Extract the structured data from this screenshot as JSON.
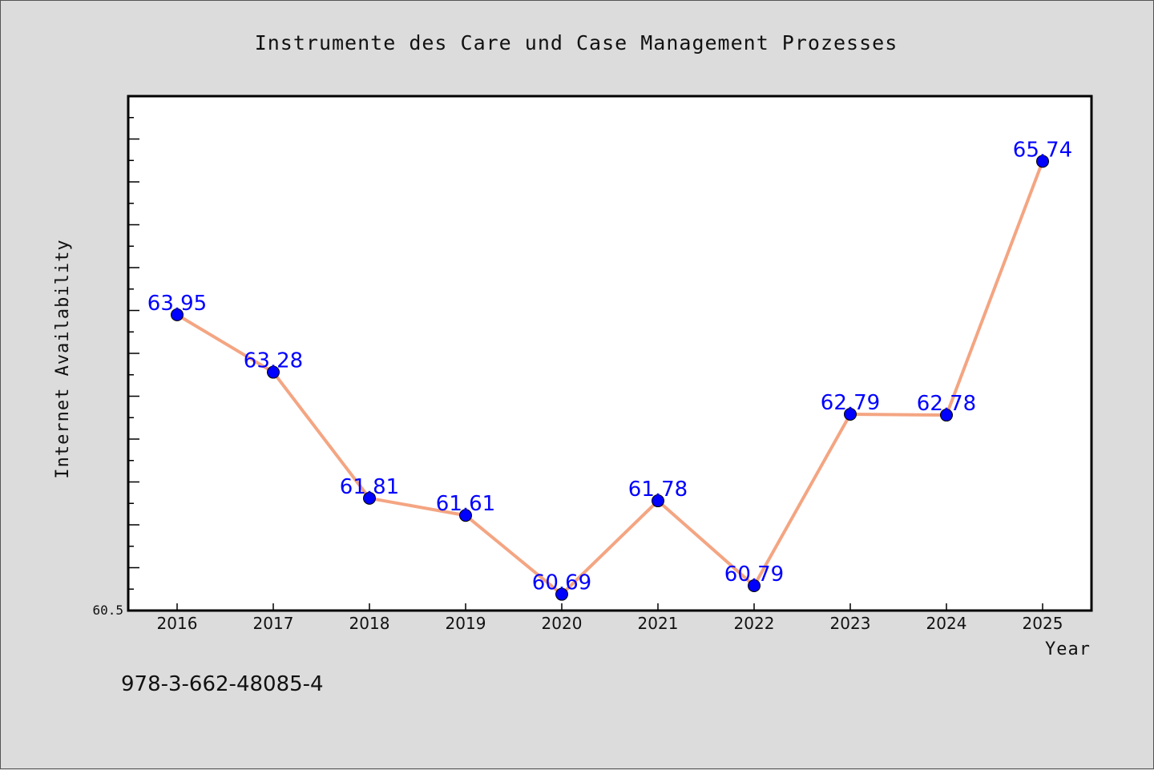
{
  "chart_data": {
    "type": "line",
    "title": "Instrumente des Care und Case Management Prozesses",
    "xlabel": "Year",
    "ylabel": "Internet Availability",
    "x": [
      "2016",
      "2017",
      "2018",
      "2019",
      "2020",
      "2021",
      "2022",
      "2023",
      "2024",
      "2025"
    ],
    "series": [
      {
        "values": [
          63.95,
          63.28,
          61.81,
          61.61,
          60.69,
          61.78,
          60.79,
          62.79,
          62.78,
          65.74
        ],
        "data_labels": [
          "63.95",
          "63.28",
          "61.81",
          "61.61",
          "60.69",
          "61.78",
          "60.79",
          "62.79",
          "62.78",
          "65.74"
        ],
        "line_color": "#f4a582",
        "marker_color": "#0000ff"
      }
    ],
    "ylim": [
      60.5,
      66.5
    ],
    "y_min_label": "60.5",
    "grid": false,
    "legend": "none",
    "footnote": "978-3-662-48085-4"
  }
}
